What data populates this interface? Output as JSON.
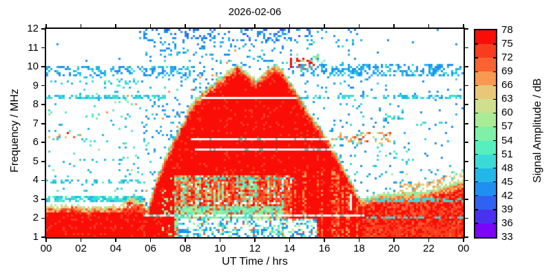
{
  "title": "2026-02-06",
  "chart_data": {
    "type": "heatmap",
    "subtype": "ionosonde-spectrogram",
    "title": "2026-02-06",
    "xlabel": "UT Time / hrs",
    "ylabel": "Frequency / MHz",
    "colorbar_label": "Signal Amplitude / dB",
    "x_range_hours": [
      0,
      24
    ],
    "x_major_ticks": [
      {
        "hour": 0,
        "label": "00"
      },
      {
        "hour": 2,
        "label": "02"
      },
      {
        "hour": 4,
        "label": "04"
      },
      {
        "hour": 6,
        "label": "06"
      },
      {
        "hour": 8,
        "label": "08"
      },
      {
        "hour": 10,
        "label": "10"
      },
      {
        "hour": 12,
        "label": "12"
      },
      {
        "hour": 14,
        "label": "14"
      },
      {
        "hour": 16,
        "label": "16"
      },
      {
        "hour": 18,
        "label": "18"
      },
      {
        "hour": 20,
        "label": "20"
      },
      {
        "hour": 22,
        "label": "22"
      },
      {
        "hour": 24,
        "label": "00"
      }
    ],
    "y_range_mhz": [
      1,
      12
    ],
    "y_ticks_mhz": [
      1,
      2,
      3,
      4,
      5,
      6,
      7,
      8,
      9,
      10,
      11,
      12
    ],
    "colorbar": {
      "range_db": [
        33,
        78
      ],
      "tick_labels_db": [
        33,
        36,
        39,
        42,
        45,
        48,
        51,
        54,
        57,
        60,
        63,
        66,
        69,
        72,
        75,
        78
      ],
      "segment_colors_low_to_high": [
        "#7A05F7",
        "#4A31F0",
        "#2F62F3",
        "#1F90F2",
        "#22B6E9",
        "#3ADBD6",
        "#55EFC0",
        "#7FF0A8",
        "#A9EC95",
        "#CEDF8D",
        "#E8C779",
        "#F99850",
        "#F96332",
        "#FA3C1E",
        "#FB0D07"
      ]
    },
    "f_region_echo_top_mhz_by_hour": [
      [
        5.55,
        1.0
      ],
      [
        5.8,
        2.3
      ],
      [
        6.0,
        3.1
      ],
      [
        6.3,
        4.0
      ],
      [
        6.7,
        4.9
      ],
      [
        7.1,
        5.8
      ],
      [
        7.5,
        6.5
      ],
      [
        7.9,
        7.15
      ],
      [
        8.2,
        7.8
      ],
      [
        8.6,
        8.3
      ],
      [
        9.0,
        8.7
      ],
      [
        9.6,
        9.15
      ],
      [
        10.2,
        9.6
      ],
      [
        10.7,
        9.95
      ],
      [
        11.0,
        10.15
      ],
      [
        11.4,
        9.85
      ],
      [
        11.8,
        9.5
      ],
      [
        12.05,
        9.35
      ],
      [
        12.4,
        9.6
      ],
      [
        12.8,
        9.9
      ],
      [
        13.2,
        10.2
      ],
      [
        13.6,
        9.85
      ],
      [
        14.0,
        9.3
      ],
      [
        14.4,
        8.7
      ],
      [
        14.8,
        8.1
      ],
      [
        15.2,
        7.5
      ],
      [
        15.6,
        7.0
      ],
      [
        16.0,
        6.5
      ],
      [
        16.4,
        5.9
      ],
      [
        16.8,
        5.3
      ],
      [
        17.2,
        4.6
      ],
      [
        17.6,
        3.9
      ],
      [
        17.9,
        3.35
      ],
      [
        18.2,
        3.05
      ]
    ],
    "night_band_top_mhz_by_hour": [
      [
        0,
        2.65
      ],
      [
        1.5,
        2.7
      ],
      [
        3.0,
        2.6
      ],
      [
        4.3,
        2.75
      ],
      [
        4.85,
        3.15
      ],
      [
        5.25,
        2.95
      ],
      [
        5.55,
        2.85
      ],
      [
        5.75,
        2.55
      ],
      [
        6.0,
        2.5
      ]
    ],
    "evening_band_top_mhz_by_hour": [
      [
        17.8,
        2.8
      ],
      [
        18.2,
        3.05
      ],
      [
        19.0,
        3.3
      ],
      [
        20.5,
        3.35
      ],
      [
        22.0,
        3.5
      ],
      [
        23.0,
        3.75
      ],
      [
        24.0,
        4.05
      ]
    ],
    "white_interference_lines": [
      {
        "f_mhz": 8.35,
        "t_hours": [
          8.95,
          14.35
        ],
        "cyan_dot_p": 0.0
      },
      {
        "f_mhz": 6.17,
        "t_hours": [
          8.3,
          16.3
        ],
        "cyan_dot_p": 0.15
      },
      {
        "f_mhz": 5.63,
        "t_hours": [
          8.5,
          16.55
        ],
        "cyan_dot_p": 0.15
      },
      {
        "f_mhz": 2.14,
        "t_hours": [
          5.6,
          18.3
        ],
        "cyan_dot_p": 0.3
      }
    ],
    "white_gap_artifact": {
      "t_hours": [
        17.5,
        17.63
      ],
      "f_mhz": [
        2.45,
        3.3
      ]
    },
    "rfi_bands": [
      {
        "f": [
          9.45,
          10.05
        ],
        "t": [
          0,
          8.3
        ],
        "p": 0.3,
        "db": [
          [
            43,
            0.5
          ],
          [
            46,
            0.35
          ],
          [
            49,
            0.15
          ]
        ]
      },
      {
        "f": [
          9.5,
          10.15
        ],
        "t": [
          14.6,
          24
        ],
        "p": 0.45,
        "db": [
          [
            43,
            0.45
          ],
          [
            46,
            0.4
          ],
          [
            49,
            0.15
          ]
        ]
      },
      {
        "f": [
          11.35,
          12.0
        ],
        "t": [
          5.4,
          15.3
        ],
        "p": 0.28,
        "db": [
          [
            40,
            0.25
          ],
          [
            43,
            0.55
          ],
          [
            46,
            0.2
          ]
        ]
      },
      {
        "f": [
          10.9,
          11.35
        ],
        "t": [
          5.4,
          15.3
        ],
        "p": 0.1,
        "db": [
          [
            43,
            0.7
          ],
          [
            46,
            0.3
          ]
        ]
      },
      {
        "f": [
          11.35,
          12.0
        ],
        "t": [
          15.3,
          18.2
        ],
        "p": 0.1,
        "db": [
          [
            43,
            0.6
          ],
          [
            46,
            0.4
          ]
        ]
      },
      {
        "f": [
          8.28,
          8.5
        ],
        "t": [
          0,
          7.0
        ],
        "p": 0.5,
        "db": [
          [
            46,
            0.4
          ],
          [
            49,
            0.6
          ]
        ]
      },
      {
        "f": [
          8.28,
          8.5
        ],
        "t": [
          14.4,
          24
        ],
        "p": 0.5,
        "db": [
          [
            46,
            0.4
          ],
          [
            49,
            0.6
          ]
        ]
      },
      {
        "f": [
          9.1,
          9.45
        ],
        "t": [
          0,
          5.5
        ],
        "p": 0.18,
        "db": [
          [
            46,
            0.4
          ],
          [
            49,
            0.4
          ],
          [
            52,
            0.2
          ]
        ]
      },
      {
        "f": [
          2.88,
          3.18
        ],
        "t": [
          0,
          5.55
        ],
        "p": 0.8,
        "db": [
          [
            49,
            0.55
          ],
          [
            46,
            0.25
          ],
          [
            52,
            0.2
          ]
        ]
      },
      {
        "f": [
          3.85,
          4.1
        ],
        "t": [
          0,
          5.5
        ],
        "p": 0.3,
        "db": [
          [
            46,
            0.5
          ],
          [
            49,
            0.5
          ]
        ]
      },
      {
        "f": [
          4.85,
          5.1
        ],
        "t": [
          0,
          5.5
        ],
        "p": 0.12,
        "db": [
          [
            46,
            0.6
          ],
          [
            49,
            0.4
          ]
        ]
      },
      {
        "f": [
          6.2,
          6.6
        ],
        "t": [
          0,
          1.7
        ],
        "p": 0.3,
        "db": [
          [
            64,
            0.2
          ],
          [
            67,
            0.3
          ],
          [
            70,
            0.25
          ],
          [
            76,
            0.25
          ]
        ]
      },
      {
        "f": [
          5.95,
          6.5
        ],
        "t": [
          16.3,
          19.8
        ],
        "p": 0.27,
        "db": [
          [
            61,
            0.2
          ],
          [
            64,
            0.3
          ],
          [
            67,
            0.3
          ],
          [
            73,
            0.2
          ]
        ]
      },
      {
        "f": [
          9.85,
          10.45
        ],
        "t": [
          13.8,
          15.4
        ],
        "p": 0.25,
        "db": [
          [
            64,
            0.2
          ],
          [
            70,
            0.3
          ],
          [
            76,
            0.5
          ]
        ]
      },
      {
        "f": [
          10.0,
          10.7
        ],
        "t": [
          14.3,
          16.0
        ],
        "p": 0.15,
        "db": [
          [
            52,
            0.4
          ],
          [
            55,
            0.4
          ],
          [
            58,
            0.2
          ]
        ]
      },
      {
        "f": [
          11.3,
          11.9
        ],
        "t": [
          13.8,
          15.0
        ],
        "p": 0.12,
        "db": [
          [
            52,
            0.5
          ],
          [
            55,
            0.5
          ]
        ]
      },
      {
        "f": [
          4.6,
          6.6
        ],
        "t": [
          18.9,
          21.3
        ],
        "p": 0.1,
        "db": [
          [
            46,
            0.4
          ],
          [
            49,
            0.3
          ],
          [
            52,
            0.3
          ]
        ]
      },
      {
        "f": [
          3.6,
          4.6
        ],
        "t": [
          19.0,
          24
        ],
        "p": 0.08,
        "db": [
          [
            46,
            0.5
          ],
          [
            52,
            0.3
          ],
          [
            58,
            0.2
          ]
        ]
      },
      {
        "f": [
          6.85,
          7.05
        ],
        "t": [
          21.3,
          23.0
        ],
        "p": 0.35,
        "db": [
          [
            49,
            1
          ]
        ]
      },
      {
        "f": [
          7.2,
          7.4
        ],
        "t": [
          19.3,
          20.5
        ],
        "p": 0.3,
        "db": [
          [
            49,
            1
          ]
        ]
      }
    ],
    "overlay_speckles": [
      {
        "f_mhz": [
          2.9,
          3.02
        ],
        "t_hours": [
          18.3,
          24
        ],
        "p": 0.5,
        "white": false,
        "db": [
          [
            49,
            1
          ]
        ]
      },
      {
        "f_mhz": [
          2.0,
          2.1
        ],
        "t_hours": [
          18.3,
          24
        ],
        "p": 0.5,
        "white": false,
        "db": [
          [
            49,
            1
          ]
        ]
      },
      {
        "f_mhz": [
          2.69,
          2.8
        ],
        "t_hours": [
          8.0,
          13.5
        ],
        "p": 0.35,
        "white": true,
        "db": [
          [
            49,
            1
          ]
        ]
      },
      {
        "f_mhz": [
          2.55,
          2.7
        ],
        "t_hours": [
          0.3,
          5.3
        ],
        "p": 0.12,
        "white": true,
        "db": [
          [
            49,
            1
          ]
        ]
      },
      {
        "f_mhz": [
          4.1,
          4.21
        ],
        "t_hours": [
          7.4,
          14.2
        ],
        "p": 0.4,
        "white": false,
        "db": [
          [
            49,
            1
          ]
        ]
      }
    ],
    "sparse_noise_zones": [
      {
        "t": [
          0,
          5.5
        ],
        "f": [
          3.2,
          9.1
        ],
        "p": 0.045,
        "db": [
          [
            46,
            0.5
          ],
          [
            49,
            0.25
          ],
          [
            52,
            0.12
          ],
          [
            55,
            0.06
          ],
          [
            58,
            0.04
          ],
          [
            67,
            0.03
          ]
        ]
      },
      {
        "t": [
          0,
          5.4
        ],
        "f": [
          10.05,
          12.0
        ],
        "p": 0.006,
        "db": [
          [
            43,
            1
          ]
        ]
      },
      {
        "t": [
          5.5,
          8.6
        ],
        "f": [
          1,
          10.9
        ],
        "p": 0.1,
        "db": [
          [
            43,
            0.45
          ],
          [
            46,
            0.3
          ],
          [
            49,
            0.15
          ],
          [
            52,
            0.05
          ],
          [
            67,
            0.05
          ]
        ]
      },
      {
        "t": [
          8.6,
          14.5
        ],
        "f": [
          1,
          10.9
        ],
        "p": 0.095,
        "db": [
          [
            43,
            0.5
          ],
          [
            46,
            0.3
          ],
          [
            49,
            0.12
          ],
          [
            55,
            0.04
          ],
          [
            67,
            0.04
          ]
        ]
      },
      {
        "t": [
          14.5,
          18.2
        ],
        "f": [
          1,
          11.35
        ],
        "p": 0.07,
        "db": [
          [
            43,
            0.5
          ],
          [
            46,
            0.35
          ],
          [
            49,
            0.15
          ]
        ]
      },
      {
        "t": [
          18.2,
          24
        ],
        "f": [
          1,
          9.5
        ],
        "p": 0.04,
        "db": [
          [
            43,
            0.55
          ],
          [
            46,
            0.3
          ],
          [
            49,
            0.15
          ]
        ]
      },
      {
        "t": [
          18.2,
          24
        ],
        "f": [
          10.15,
          12
        ],
        "p": 0.012,
        "db": [
          [
            43,
            1
          ]
        ]
      },
      {
        "t": [
          5.4,
          18.2
        ],
        "f": [
          10.9,
          11.35
        ],
        "p": 0.05,
        "db": [
          [
            43,
            0.7
          ],
          [
            46,
            0.3
          ]
        ]
      }
    ],
    "texture": {
      "body_db": 76.5,
      "body_orange_db": 73.5,
      "fringe_green_db": [
        [
          55,
          1
        ],
        [
          58,
          1
        ],
        [
          61,
          1
        ]
      ],
      "fringe_orange_db": [
        [
          64,
          1
        ],
        [
          67,
          1
        ],
        [
          70,
          1
        ]
      ],
      "fringe_hot_db": [
        [
          70,
          1
        ],
        [
          73,
          1
        ],
        [
          76,
          1
        ]
      ],
      "night_fringe1_db": [
        [
          58,
          1
        ],
        [
          61,
          1
        ],
        [
          64,
          1
        ]
      ],
      "night_fringe2_db": [
        [
          64,
          1
        ],
        [
          67,
          1
        ],
        [
          70,
          1
        ],
        [
          73,
          1
        ]
      ],
      "night_body_db": [
        [
          73.5,
          0.4
        ],
        [
          76.5,
          0.35
        ],
        [
          70,
          0.25
        ]
      ],
      "evening_body_db": [
        [
          76.5,
          0.5
        ],
        [
          73.5,
          0.3
        ],
        [
          70,
          0.2
        ]
      ],
      "striation_db": [
        [
          67,
          1
        ],
        [
          70,
          1
        ],
        [
          73,
          1
        ]
      ],
      "striation_green_db": [
        [
          55,
          1
        ],
        [
          58,
          1
        ],
        [
          61,
          1
        ]
      ],
      "midday_bottom_dots_db": [
        [
          43,
          0.3
        ],
        [
          46,
          0.2
        ],
        [
          49,
          0.12
        ],
        [
          55,
          0.18
        ],
        [
          58,
          0.1
        ],
        [
          70,
          0.1
        ]
      ],
      "midday_lowband_db": [
        [
          55,
          0.25
        ],
        [
          58,
          0.2
        ],
        [
          52,
          0.15
        ],
        [
          61,
          0.1
        ],
        [
          70,
          0.12
        ],
        [
          73,
          0.1
        ],
        [
          49,
          0.08
        ]
      ],
      "spread_base_db": [
        [
          70,
          0.3
        ],
        [
          73,
          0.3
        ],
        [
          67,
          0.2
        ],
        [
          76.5,
          0.2
        ]
      ],
      "spread_streak_db": [
        [
          52,
          0.2
        ],
        [
          55,
          0.3
        ],
        [
          58,
          0.25
        ],
        [
          49,
          0.15
        ],
        [
          61,
          0.1
        ]
      ],
      "late_above_db": [
        [
          61,
          1
        ],
        [
          64,
          1
        ],
        [
          67,
          1
        ]
      ]
    }
  }
}
